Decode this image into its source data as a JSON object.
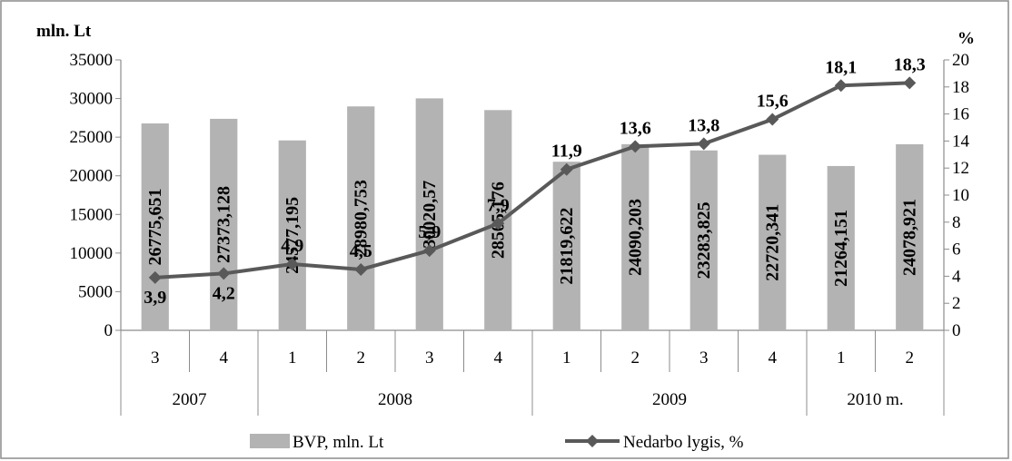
{
  "chart_data": {
    "type": "bar",
    "y_left_label": "mln. Lt",
    "y_right_label": "%",
    "y_left_lim": [
      0,
      35000
    ],
    "y_left_ticks": [
      "0",
      "5000",
      "10000",
      "15000",
      "20000",
      "25000",
      "30000",
      "35000"
    ],
    "y_right_lim": [
      0,
      20
    ],
    "y_right_ticks": [
      "0",
      "2",
      "4",
      "6",
      "8",
      "10",
      "12",
      "14",
      "16",
      "18",
      "20"
    ],
    "categories": [
      "3",
      "4",
      "1",
      "2",
      "3",
      "4",
      "1",
      "2",
      "3",
      "4",
      "1",
      "2"
    ],
    "year_groups": [
      {
        "label": "2007",
        "count": 2
      },
      {
        "label": "2008",
        "count": 4
      },
      {
        "label": "2009",
        "count": 4
      },
      {
        "label": "2010 m.",
        "count": 2
      }
    ],
    "series": [
      {
        "name": "BVP, mln. Lt",
        "type": "bar",
        "axis": "left",
        "color": "#b3b3b3",
        "values": [
          26775.651,
          27373.128,
          24577.195,
          28980.753,
          30020.57,
          28505.176,
          21819.622,
          24090.203,
          23283.825,
          22720.341,
          21264.151,
          24078.921
        ],
        "labels": [
          "26775,651",
          "27373,128",
          "24577,195",
          "28980,753",
          "30020,57",
          "28505,176",
          "21819,622",
          "24090,203",
          "23283,825",
          "22720,341",
          "21264,151",
          "24078,921"
        ]
      },
      {
        "name": "Nedarbo lygis, %",
        "type": "line",
        "axis": "right",
        "color": "#595959",
        "values": [
          3.9,
          4.2,
          4.9,
          4.5,
          5.9,
          7.9,
          11.9,
          13.6,
          13.8,
          15.6,
          18.1,
          18.3
        ],
        "labels": [
          "3,9",
          "4,2",
          "4,9",
          "4,5",
          "5,9",
          "7,9",
          "11,9",
          "13,6",
          "13,8",
          "15,6",
          "18,1",
          "18,3"
        ]
      }
    ],
    "legend_position": "bottom"
  }
}
